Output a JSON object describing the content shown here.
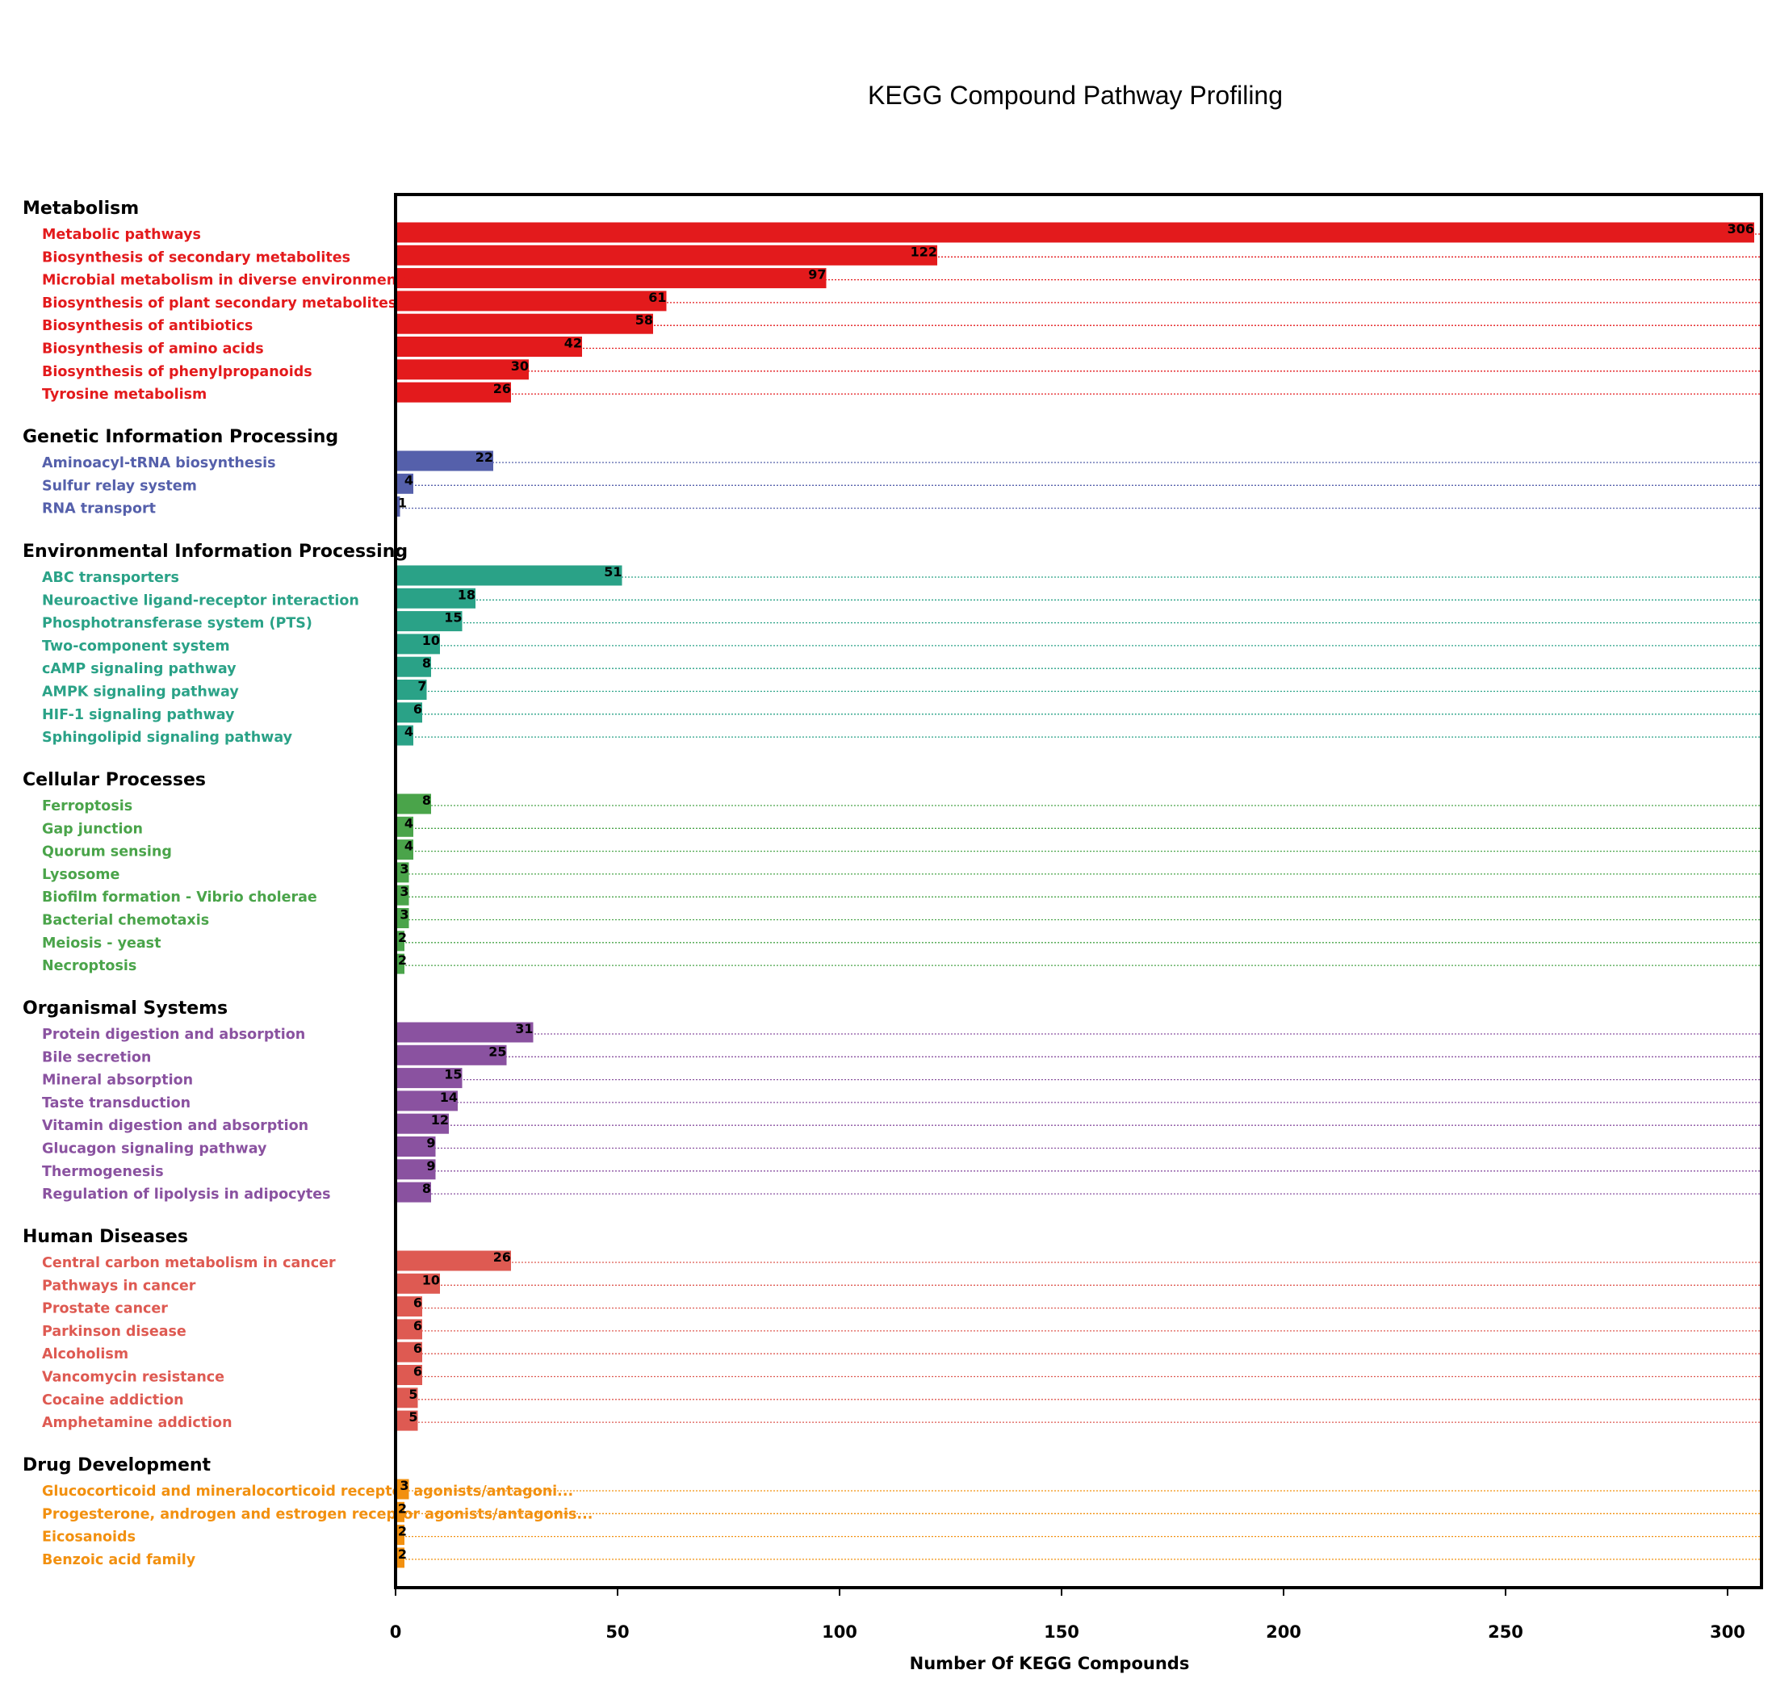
{
  "chart_data": {
    "type": "bar",
    "orientation": "horizontal",
    "title": "KEGG Compound Pathway Profiling",
    "xlabel": "Number Of KEGG Compounds",
    "xlim": [
      0,
      308
    ],
    "xticks": [
      0,
      50,
      100,
      150,
      200,
      250,
      300
    ],
    "grid": "dotted horizontal guide per bar",
    "groups": [
      {
        "name": "Metabolism",
        "color": "#e31a1c",
        "items": [
          {
            "label": "Metabolic pathways",
            "value": 306
          },
          {
            "label": "Biosynthesis of secondary metabolites",
            "value": 122
          },
          {
            "label": "Microbial metabolism in diverse environments",
            "value": 97
          },
          {
            "label": "Biosynthesis of plant secondary metabolites",
            "value": 61
          },
          {
            "label": "Biosynthesis of antibiotics",
            "value": 58
          },
          {
            "label": "Biosynthesis of amino acids",
            "value": 42
          },
          {
            "label": "Biosynthesis of phenylpropanoids",
            "value": 30
          },
          {
            "label": "Tyrosine metabolism",
            "value": 26
          }
        ]
      },
      {
        "name": "Genetic Information Processing",
        "color": "#5560ab",
        "items": [
          {
            "label": "Aminoacyl-tRNA biosynthesis",
            "value": 22
          },
          {
            "label": "Sulfur relay system",
            "value": 4
          },
          {
            "label": "RNA transport",
            "value": 1
          }
        ]
      },
      {
        "name": "Environmental Information Processing",
        "color": "#2aa287",
        "items": [
          {
            "label": "ABC transporters",
            "value": 51
          },
          {
            "label": "Neuroactive ligand-receptor interaction",
            "value": 18
          },
          {
            "label": "Phosphotransferase system (PTS)",
            "value": 15
          },
          {
            "label": "Two-component system",
            "value": 10
          },
          {
            "label": "cAMP signaling pathway",
            "value": 8
          },
          {
            "label": "AMPK signaling pathway",
            "value": 7
          },
          {
            "label": "HIF-1 signaling pathway",
            "value": 6
          },
          {
            "label": "Sphingolipid signaling pathway",
            "value": 4
          }
        ]
      },
      {
        "name": "Cellular Processes",
        "color": "#4aa44a",
        "items": [
          {
            "label": "Ferroptosis",
            "value": 8
          },
          {
            "label": "Gap junction",
            "value": 4
          },
          {
            "label": "Quorum sensing",
            "value": 4
          },
          {
            "label": "Lysosome",
            "value": 3
          },
          {
            "label": "Biofilm formation - Vibrio cholerae",
            "value": 3
          },
          {
            "label": "Bacterial chemotaxis",
            "value": 3
          },
          {
            "label": "Meiosis - yeast",
            "value": 2
          },
          {
            "label": "Necroptosis",
            "value": 2
          }
        ]
      },
      {
        "name": "Organismal Systems",
        "color": "#8a52a0",
        "items": [
          {
            "label": "Protein digestion and absorption",
            "value": 31
          },
          {
            "label": "Bile secretion",
            "value": 25
          },
          {
            "label": "Mineral absorption",
            "value": 15
          },
          {
            "label": "Taste transduction",
            "value": 14
          },
          {
            "label": "Vitamin digestion and absorption",
            "value": 12
          },
          {
            "label": "Glucagon signaling pathway",
            "value": 9
          },
          {
            "label": "Thermogenesis",
            "value": 9
          },
          {
            "label": "Regulation of lipolysis in adipocytes",
            "value": 8
          }
        ]
      },
      {
        "name": "Human Diseases",
        "color": "#de5a52",
        "items": [
          {
            "label": "Central carbon metabolism in cancer",
            "value": 26
          },
          {
            "label": "Pathways in cancer",
            "value": 10
          },
          {
            "label": "Prostate cancer",
            "value": 6
          },
          {
            "label": "Parkinson disease",
            "value": 6
          },
          {
            "label": "Alcoholism",
            "value": 6
          },
          {
            "label": "Vancomycin resistance",
            "value": 6
          },
          {
            "label": "Cocaine addiction",
            "value": 5
          },
          {
            "label": "Amphetamine addiction",
            "value": 5
          }
        ]
      },
      {
        "name": "Drug Development",
        "color": "#f2900f",
        "items": [
          {
            "label": "Glucocorticoid and mineralocorticoid receptor agonists/antagoni...",
            "value": 3
          },
          {
            "label": "Progesterone, androgen and estrogen receptor agonists/antagonis...",
            "value": 2
          },
          {
            "label": "Eicosanoids",
            "value": 2
          },
          {
            "label": "Benzoic acid family",
            "value": 2
          }
        ]
      }
    ]
  }
}
